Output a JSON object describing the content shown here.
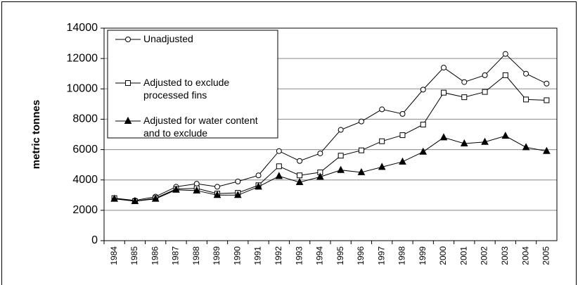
{
  "chart_data": {
    "type": "line",
    "categories": [
      "1984",
      "1985",
      "1986",
      "1987",
      "1988",
      "1989",
      "1990",
      "1991",
      "1992",
      "1993",
      "1994",
      "1995",
      "1996",
      "1997",
      "1998",
      "1999",
      "2000",
      "2001",
      "2002",
      "2003",
      "2004",
      "2005"
    ],
    "ylabel": "metric tonnes",
    "ylim": [
      0,
      14000
    ],
    "yticks": [
      0,
      2000,
      4000,
      6000,
      8000,
      10000,
      12000,
      14000
    ],
    "grid": true,
    "series": [
      {
        "name": "Unadjusted",
        "color": "#000000",
        "marker": "circle",
        "values": [
          2800,
          2650,
          2900,
          3550,
          3750,
          3550,
          3900,
          4300,
          5900,
          5250,
          5750,
          7300,
          7850,
          8650,
          8350,
          9950,
          11400,
          10450,
          10900,
          12300,
          11000,
          10350
        ]
      },
      {
        "name": "Adjusted to exclude processed fins",
        "color": "#000000",
        "marker": "square",
        "values": [
          2800,
          2600,
          2800,
          3400,
          3450,
          3100,
          3150,
          3650,
          4900,
          4300,
          4500,
          5600,
          5950,
          6550,
          6950,
          7650,
          9750,
          9450,
          9800,
          10900,
          9300,
          9250
        ]
      },
      {
        "name": "Adjusted for water content and to exclude",
        "color": "#000000",
        "marker": "triangle",
        "values": [
          2750,
          2600,
          2750,
          3350,
          3300,
          3000,
          3000,
          3550,
          4250,
          3850,
          4200,
          4650,
          4500,
          4850,
          5200,
          5850,
          6800,
          6400,
          6500,
          6900,
          6150,
          5900
        ]
      }
    ]
  }
}
